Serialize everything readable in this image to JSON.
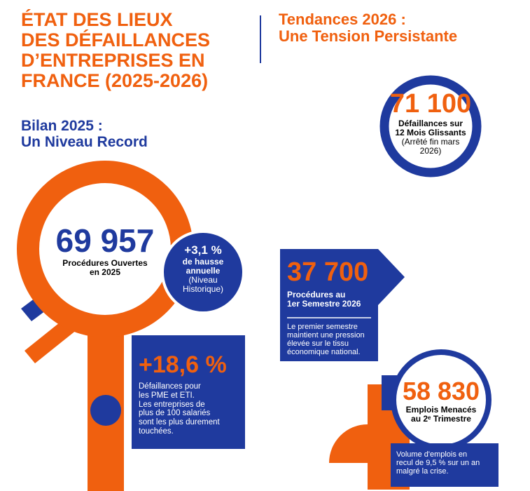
{
  "header": {
    "title": [
      "ÉTAT DES LIEUX",
      "DES DÉFAILLANCES",
      "D’ENTREPRISES EN",
      "FRANCE (2025-2026)"
    ],
    "subtitle_right": [
      "Tendances 2026 :",
      "Une Tension Persistante"
    ]
  },
  "bilan_2025": {
    "heading": [
      "Bilan 2025 :",
      "Un Niveau Record"
    ],
    "procedures": {
      "value": "69 957",
      "label": [
        "Procédures Ouvertes",
        "en 2025"
      ]
    },
    "growth": {
      "value": "+3,1 %",
      "label": [
        "de hausse",
        "annuelle"
      ],
      "note": [
        "(Niveau",
        "Historique)"
      ]
    },
    "sme": {
      "value": "+18,6 %",
      "text": [
        "Défaillances pour",
        "les PME et ETI.",
        "Les entreprises de",
        "plus de 100 salariés",
        "sont les plus durement",
        "touchées."
      ]
    }
  },
  "tendances_2026": {
    "rolling": {
      "value": "71 100",
      "label": [
        "Défaillances sur",
        "12 Mois Glissants"
      ],
      "note": [
        "(Arrêté fin mars",
        "2026)"
      ]
    },
    "semester": {
      "value": "37 700",
      "label": [
        "Procédures au",
        "1er Semestre 2026"
      ],
      "text": [
        "Le premier semestre",
        "maintient une pression",
        "élevée sur le tissu",
        "économique national."
      ]
    },
    "jobs": {
      "value": "58 830",
      "label": [
        "Emplois Menacés",
        "au 2ᵉ Trimestre"
      ],
      "text": [
        "Volume d'emplois en",
        "recul de 9,5 % sur un an",
        "malgré la crise."
      ]
    }
  }
}
